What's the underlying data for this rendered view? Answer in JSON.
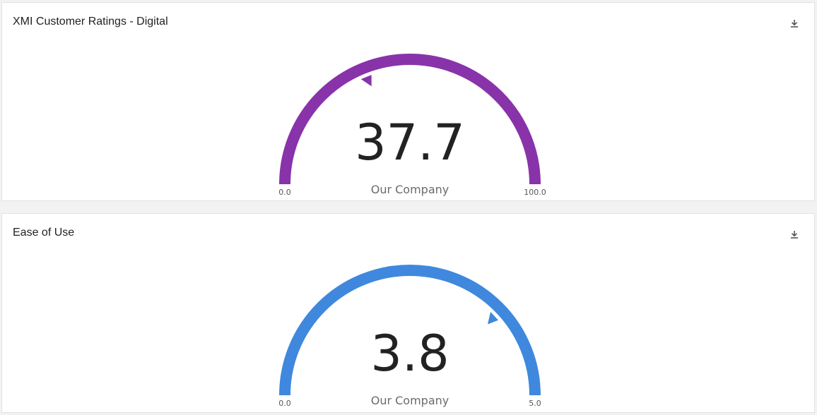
{
  "chart_data": [
    {
      "type": "gauge",
      "title": "XMI Customer Ratings - Digital",
      "value": 37.7,
      "value_label": "37.7",
      "subtitle": "Our Company",
      "min": 0,
      "max": 100,
      "min_label": "0.0",
      "max_label": "100.0",
      "color": "#8833aa"
    },
    {
      "type": "gauge",
      "title": "Ease of Use",
      "value": 3.8,
      "value_label": "3.8",
      "subtitle": "Our Company",
      "min": 0,
      "max": 5,
      "min_label": "0.0",
      "max_label": "5.0",
      "color": "#3f88dd"
    }
  ],
  "icons": {
    "download": "download-icon"
  }
}
